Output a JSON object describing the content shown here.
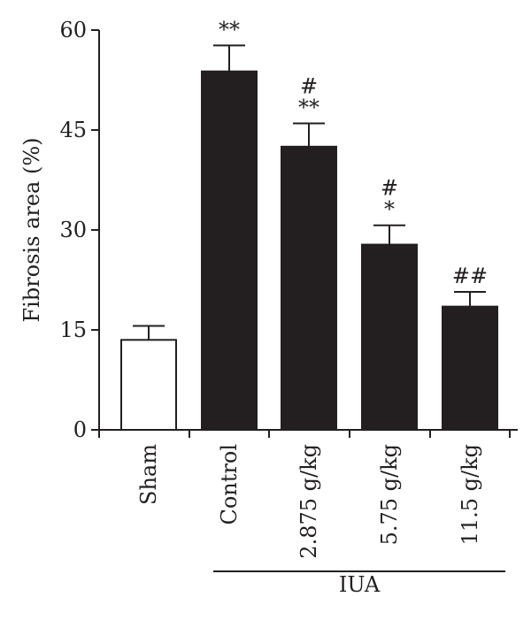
{
  "chart_data": {
    "type": "bar",
    "title": "",
    "xlabel": "",
    "ylabel": "Fibrosis area (%)",
    "ylim": [
      0,
      60
    ],
    "yticks": [
      0,
      15,
      30,
      45,
      60
    ],
    "categories": [
      "Sham",
      "Control",
      "2.875 g/kg",
      "5.75 g/kg",
      "11.5 g/kg"
    ],
    "values": [
      13.5,
      53.8,
      42.5,
      27.8,
      18.5
    ],
    "errors": [
      2.1,
      3.9,
      3.5,
      2.9,
      2.2
    ],
    "significance": [
      [],
      [
        "**"
      ],
      [
        "#",
        "**"
      ],
      [
        "#",
        "*"
      ],
      [
        "##"
      ]
    ],
    "group_label": "IUA",
    "grid": false,
    "colors": {
      "sham_fill": "#ffffff",
      "treated_fill": "#231f20",
      "stroke": "#231f20"
    }
  }
}
